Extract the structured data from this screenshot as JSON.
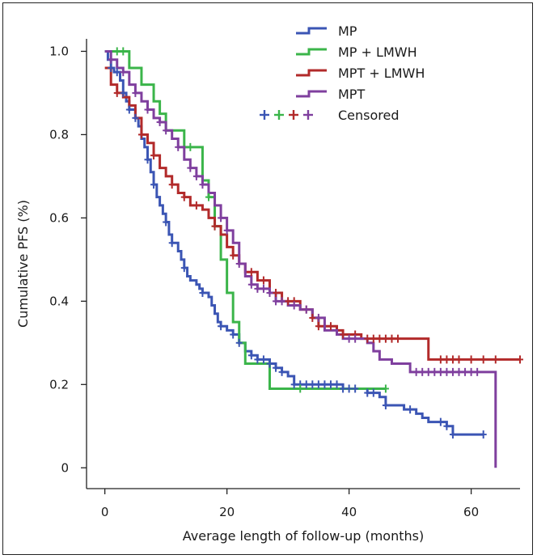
{
  "chart_data": {
    "type": "line",
    "subtype": "kaplan-meier step curves",
    "title": "",
    "xlabel": "Average length of follow-up (months)",
    "ylabel": "Cumulative PFS (%)",
    "xlim": [
      -3,
      68
    ],
    "ylim": [
      -0.05,
      1.03
    ],
    "xticks": [
      0,
      20,
      40,
      60
    ],
    "xtick_labels": [
      "0",
      "20",
      "40",
      "60"
    ],
    "yticks": [
      0,
      0.2,
      0.4,
      0.6,
      0.8,
      1.0
    ],
    "ytick_labels": [
      "0",
      "0.2",
      "0.4",
      "0.6",
      "0.8",
      "1.0"
    ],
    "grid": false,
    "legend_position": "top-right",
    "censored_label": "Censored",
    "series": [
      {
        "name": "MP",
        "color": "#3b55b4",
        "points": [
          [
            0,
            1.0
          ],
          [
            0.5,
            0.98
          ],
          [
            1,
            0.96
          ],
          [
            1.5,
            0.95
          ],
          [
            2.5,
            0.93
          ],
          [
            3,
            0.9
          ],
          [
            3.5,
            0.88
          ],
          [
            4,
            0.86
          ],
          [
            5,
            0.84
          ],
          [
            5.5,
            0.82
          ],
          [
            6,
            0.79
          ],
          [
            6.5,
            0.77
          ],
          [
            7,
            0.74
          ],
          [
            7.5,
            0.71
          ],
          [
            8,
            0.68
          ],
          [
            8.5,
            0.65
          ],
          [
            9,
            0.63
          ],
          [
            9.5,
            0.61
          ],
          [
            10,
            0.59
          ],
          [
            10.5,
            0.56
          ],
          [
            11,
            0.54
          ],
          [
            12,
            0.52
          ],
          [
            12.5,
            0.5
          ],
          [
            13,
            0.48
          ],
          [
            13.5,
            0.46
          ],
          [
            14,
            0.45
          ],
          [
            15,
            0.44
          ],
          [
            15.5,
            0.43
          ],
          [
            16,
            0.42
          ],
          [
            17,
            0.41
          ],
          [
            17.5,
            0.39
          ],
          [
            18,
            0.37
          ],
          [
            18.5,
            0.35
          ],
          [
            19,
            0.34
          ],
          [
            20,
            0.33
          ],
          [
            21,
            0.32
          ],
          [
            22,
            0.3
          ],
          [
            23,
            0.28
          ],
          [
            24,
            0.27
          ],
          [
            25,
            0.26
          ],
          [
            27,
            0.25
          ],
          [
            28,
            0.24
          ],
          [
            29,
            0.23
          ],
          [
            30,
            0.22
          ],
          [
            31,
            0.2
          ],
          [
            39,
            0.19
          ],
          [
            43,
            0.18
          ],
          [
            45,
            0.17
          ],
          [
            46,
            0.15
          ],
          [
            49,
            0.14
          ],
          [
            51,
            0.13
          ],
          [
            52,
            0.12
          ],
          [
            53,
            0.11
          ],
          [
            56,
            0.1
          ],
          [
            57,
            0.08
          ],
          [
            62,
            0.08
          ]
        ],
        "censored_x": [
          1,
          2,
          3,
          4,
          5,
          7,
          8,
          10,
          11,
          13,
          16,
          19,
          21,
          22,
          24,
          25,
          26,
          27,
          28,
          29,
          31,
          32,
          33,
          34,
          35,
          36,
          37,
          38,
          39,
          40,
          41,
          43,
          44,
          46,
          50,
          55,
          56,
          57,
          62
        ]
      },
      {
        "name": "MP + LMWH",
        "color": "#3bb54a",
        "points": [
          [
            0,
            1.0
          ],
          [
            4,
            0.96
          ],
          [
            6,
            0.92
          ],
          [
            8,
            0.88
          ],
          [
            9,
            0.85
          ],
          [
            10,
            0.81
          ],
          [
            13,
            0.77
          ],
          [
            16,
            0.69
          ],
          [
            17,
            0.65
          ],
          [
            18,
            0.58
          ],
          [
            19,
            0.5
          ],
          [
            20,
            0.42
          ],
          [
            21,
            0.35
          ],
          [
            22,
            0.3
          ],
          [
            23,
            0.25
          ],
          [
            27,
            0.19
          ],
          [
            46,
            0.19
          ]
        ],
        "censored_x": [
          2,
          3,
          14,
          17,
          18,
          32,
          46
        ]
      },
      {
        "name": "MPT + LMWH",
        "color": "#b22a2a",
        "points": [
          [
            0,
            0.96
          ],
          [
            1,
            0.92
          ],
          [
            2,
            0.9
          ],
          [
            3,
            0.89
          ],
          [
            4,
            0.87
          ],
          [
            5,
            0.84
          ],
          [
            6,
            0.8
          ],
          [
            7,
            0.78
          ],
          [
            8,
            0.75
          ],
          [
            9,
            0.72
          ],
          [
            10,
            0.7
          ],
          [
            11,
            0.68
          ],
          [
            12,
            0.66
          ],
          [
            13,
            0.65
          ],
          [
            14,
            0.63
          ],
          [
            16,
            0.62
          ],
          [
            17,
            0.6
          ],
          [
            18,
            0.58
          ],
          [
            19,
            0.56
          ],
          [
            20,
            0.53
          ],
          [
            21,
            0.51
          ],
          [
            22,
            0.49
          ],
          [
            23,
            0.47
          ],
          [
            25,
            0.45
          ],
          [
            27,
            0.42
          ],
          [
            29,
            0.4
          ],
          [
            32,
            0.38
          ],
          [
            34,
            0.36
          ],
          [
            35,
            0.34
          ],
          [
            38,
            0.33
          ],
          [
            39,
            0.32
          ],
          [
            42,
            0.31
          ],
          [
            49,
            0.31
          ],
          [
            53,
            0.26
          ],
          [
            68,
            0.26
          ]
        ],
        "censored_x": [
          2,
          6,
          8,
          11,
          13,
          15,
          18,
          21,
          24,
          26,
          28,
          30,
          31,
          33,
          34,
          35,
          37,
          39,
          41,
          43,
          44,
          45,
          46,
          47,
          48,
          55,
          56,
          57,
          58,
          60,
          62,
          64,
          68
        ]
      },
      {
        "name": "MPT",
        "color": "#7f3f9e",
        "points": [
          [
            0,
            1.0
          ],
          [
            1,
            0.98
          ],
          [
            2,
            0.96
          ],
          [
            3,
            0.95
          ],
          [
            4,
            0.92
          ],
          [
            5,
            0.9
          ],
          [
            6,
            0.88
          ],
          [
            7,
            0.86
          ],
          [
            8,
            0.84
          ],
          [
            9,
            0.83
          ],
          [
            10,
            0.81
          ],
          [
            11,
            0.79
          ],
          [
            12,
            0.77
          ],
          [
            13,
            0.74
          ],
          [
            14,
            0.72
          ],
          [
            15,
            0.7
          ],
          [
            16,
            0.68
          ],
          [
            17,
            0.66
          ],
          [
            18,
            0.63
          ],
          [
            19,
            0.6
          ],
          [
            20,
            0.57
          ],
          [
            21,
            0.54
          ],
          [
            22,
            0.49
          ],
          [
            23,
            0.46
          ],
          [
            24,
            0.44
          ],
          [
            25,
            0.43
          ],
          [
            27,
            0.42
          ],
          [
            28,
            0.4
          ],
          [
            30,
            0.39
          ],
          [
            32,
            0.38
          ],
          [
            34,
            0.36
          ],
          [
            36,
            0.33
          ],
          [
            38,
            0.32
          ],
          [
            39,
            0.31
          ],
          [
            43,
            0.3
          ],
          [
            44,
            0.28
          ],
          [
            45,
            0.26
          ],
          [
            47,
            0.25
          ],
          [
            50,
            0.23
          ],
          [
            64,
            0.23
          ],
          [
            64,
            0.0
          ]
        ],
        "censored_x": [
          1,
          3,
          5,
          7,
          9,
          10,
          12,
          14,
          15,
          16,
          19,
          20,
          22,
          24,
          25,
          26,
          27,
          28,
          29,
          31,
          33,
          35,
          40,
          41,
          51,
          52,
          53,
          54,
          55,
          56,
          57,
          58,
          59,
          60,
          61
        ]
      }
    ]
  }
}
